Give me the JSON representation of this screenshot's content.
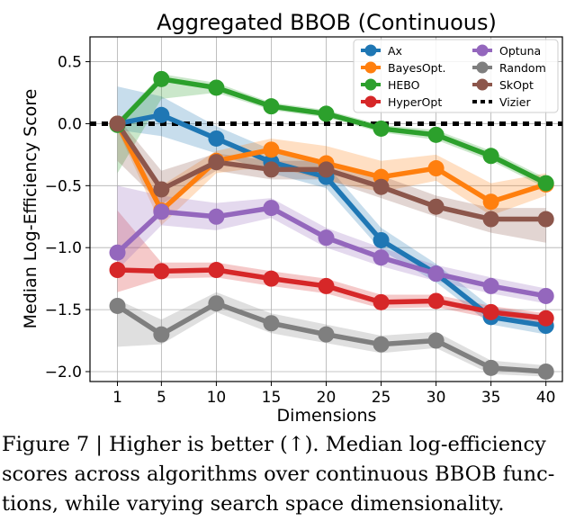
{
  "chart_data": {
    "type": "line",
    "title": "Aggregated BBOB (Continuous)",
    "xlabel": "Dimensions",
    "ylabel": "Median Log-Efficiency Score",
    "x": [
      1,
      5,
      10,
      15,
      20,
      25,
      30,
      35,
      40
    ],
    "xticks": [
      1,
      5,
      10,
      15,
      20,
      25,
      30,
      35,
      40
    ],
    "yticks": [
      0.5,
      0.0,
      -0.5,
      -1.0,
      -1.5,
      -2.0
    ],
    "ytick_labels": [
      "0.5",
      "0.0",
      "−0.5",
      "−1.0",
      "−1.5",
      "−2.0"
    ],
    "xlim": [
      -1.5,
      41.5
    ],
    "ylim": [
      -2.08,
      0.7
    ],
    "grid": true,
    "legend_placement": "top-right",
    "series": [
      {
        "name": "Ax",
        "color": "#1f77b4",
        "values": [
          0.0,
          0.07,
          -0.12,
          -0.31,
          -0.43,
          -0.94,
          -1.21,
          -1.56,
          -1.63
        ],
        "upper": [
          0.3,
          0.22,
          -0.02,
          -0.21,
          -0.33,
          -0.84,
          -1.13,
          -1.48,
          -1.55
        ],
        "lower": [
          -0.05,
          -0.1,
          -0.24,
          -0.4,
          -0.52,
          -1.02,
          -1.28,
          -1.62,
          -1.7
        ]
      },
      {
        "name": "BayesOpt.",
        "color": "#ff7f0e",
        "values": [
          0.0,
          -0.7,
          -0.3,
          -0.21,
          -0.32,
          -0.43,
          -0.36,
          -0.63,
          -0.49
        ],
        "upper": [
          0.02,
          -0.5,
          -0.22,
          -0.12,
          -0.18,
          -0.3,
          -0.25,
          -0.48,
          -0.4
        ],
        "lower": [
          -0.05,
          -0.82,
          -0.4,
          -0.34,
          -0.46,
          -0.55,
          -0.46,
          -0.74,
          -0.58
        ]
      },
      {
        "name": "HEBO",
        "color": "#2ca02c",
        "values": [
          -0.01,
          0.36,
          0.29,
          0.14,
          0.08,
          -0.04,
          -0.09,
          -0.26,
          -0.48
        ],
        "upper": [
          0.02,
          0.4,
          0.33,
          0.17,
          0.11,
          -0.01,
          -0.05,
          -0.22,
          -0.44
        ],
        "lower": [
          -0.4,
          0.2,
          0.25,
          0.11,
          0.05,
          -0.07,
          -0.13,
          -0.3,
          -0.52
        ]
      },
      {
        "name": "HyperOpt",
        "color": "#d62728",
        "values": [
          -1.18,
          -1.19,
          -1.18,
          -1.25,
          -1.31,
          -1.44,
          -1.43,
          -1.52,
          -1.57
        ],
        "upper": [
          -0.7,
          -1.12,
          -1.12,
          -1.19,
          -1.25,
          -1.38,
          -1.38,
          -1.47,
          -1.53
        ],
        "lower": [
          -1.36,
          -1.25,
          -1.24,
          -1.31,
          -1.37,
          -1.49,
          -1.48,
          -1.57,
          -1.61
        ]
      },
      {
        "name": "Optuna",
        "color": "#9467bd",
        "values": [
          -1.04,
          -0.71,
          -0.75,
          -0.68,
          -0.92,
          -1.08,
          -1.21,
          -1.31,
          -1.39
        ],
        "upper": [
          -0.5,
          -0.58,
          -0.64,
          -0.6,
          -0.84,
          -1.0,
          -1.14,
          -1.24,
          -1.33
        ],
        "lower": [
          -1.18,
          -0.82,
          -0.86,
          -0.76,
          -1.0,
          -1.15,
          -1.27,
          -1.37,
          -1.45
        ]
      },
      {
        "name": "Random",
        "color": "#7f7f7f",
        "values": [
          -1.47,
          -1.7,
          -1.45,
          -1.61,
          -1.7,
          -1.78,
          -1.75,
          -1.97,
          -2.0
        ],
        "upper": [
          -1.42,
          -1.58,
          -1.36,
          -1.53,
          -1.62,
          -1.71,
          -1.68,
          -1.91,
          -1.95
        ],
        "lower": [
          -1.8,
          -1.78,
          -1.52,
          -1.69,
          -1.77,
          -1.85,
          -1.81,
          -2.02,
          -2.04
        ]
      },
      {
        "name": "SkOpt",
        "color": "#8c564b",
        "values": [
          0.0,
          -0.53,
          -0.31,
          -0.37,
          -0.37,
          -0.51,
          -0.67,
          -0.77,
          -0.77
        ],
        "upper": [
          0.05,
          -0.38,
          -0.24,
          -0.3,
          -0.3,
          -0.42,
          -0.58,
          -0.68,
          -0.68
        ],
        "lower": [
          -0.3,
          -0.65,
          -0.38,
          -0.45,
          -0.45,
          -0.6,
          -0.75,
          -0.88,
          -0.96
        ]
      }
    ],
    "reference": {
      "name": "Vizier",
      "color": "#000000",
      "value": 0.0
    }
  },
  "caption": {
    "lines": [
      "Figure 7 | Higher is better (↑). Median log-efficiency",
      "scores across algorithms over continuous BBOB func-",
      "tions, while varying search space dimensionality."
    ]
  }
}
